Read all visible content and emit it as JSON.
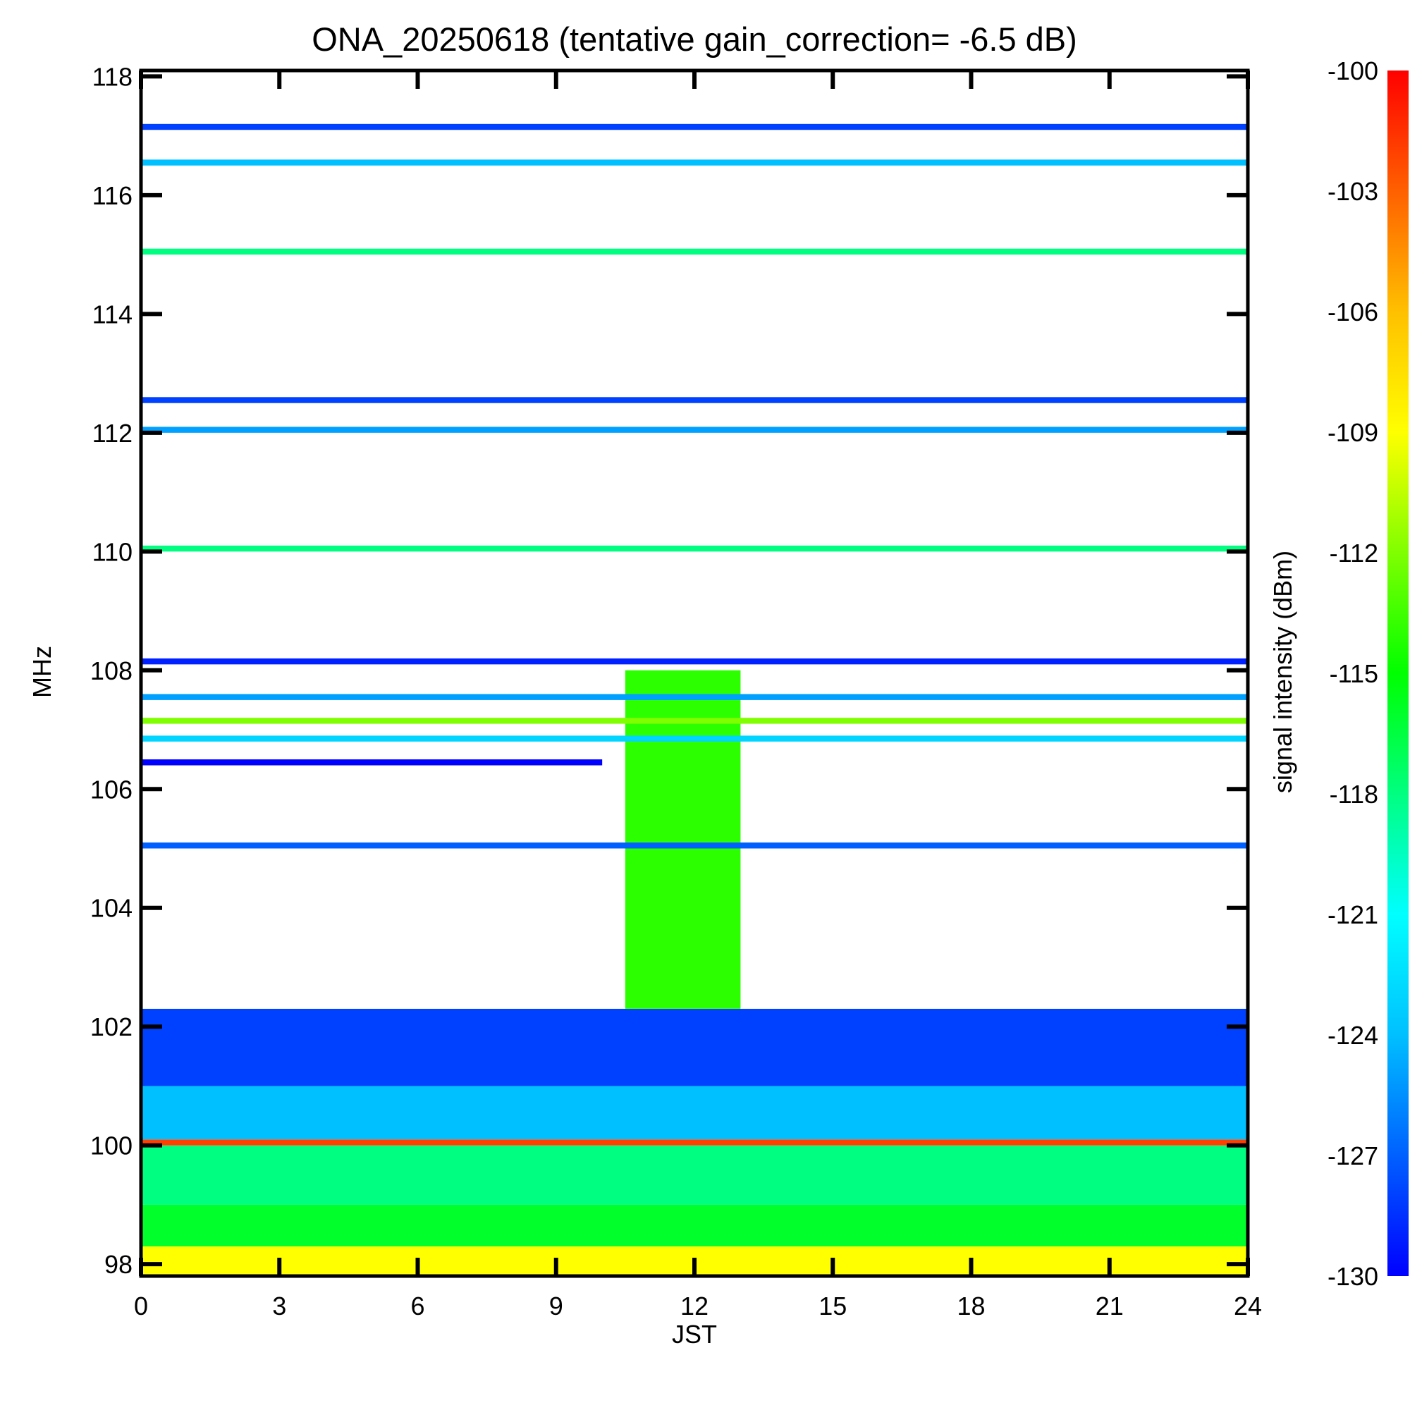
{
  "chart_data": {
    "type": "heatmap",
    "title": "ONA_20250618 (tentative gain_correction= -6.5 dB)",
    "xlabel": "JST",
    "ylabel": "MHz",
    "colorbar_label": "signal intensity (dBm)",
    "xlim": [
      0,
      24
    ],
    "ylim": [
      97.8,
      118.1
    ],
    "x_ticks": [
      0,
      3,
      6,
      9,
      12,
      15,
      18,
      21,
      24
    ],
    "x_tick_labels": [
      "0",
      "3",
      "6",
      "9",
      "12",
      "15",
      "18",
      "21",
      "24"
    ],
    "y_ticks": [
      98,
      100,
      102,
      104,
      106,
      108,
      110,
      112,
      114,
      116,
      118
    ],
    "y_tick_labels": [
      "98",
      "100",
      "102",
      "104",
      "106",
      "108",
      "110",
      "112",
      "114",
      "116",
      "118"
    ],
    "colorbar_range": [
      -130,
      -100
    ],
    "colorbar_ticks": [
      -100,
      -103,
      -106,
      -109,
      -112,
      -115,
      -118,
      -121,
      -124,
      -127,
      -130
    ],
    "colorbar_tick_labels": [
      "-100",
      "-103",
      "-106",
      "-109",
      "-112",
      "-115",
      "-118",
      "-121",
      "-124",
      "-127",
      "-130"
    ],
    "colormap": [
      "#0000ff",
      "#0060ff",
      "#00c0ff",
      "#00ffff",
      "#00ff80",
      "#00ff00",
      "#80ff00",
      "#ffff00",
      "#ffc000",
      "#ff6000",
      "#ff0000"
    ],
    "approx_bands": [
      {
        "freq_range": [
          97.8,
          98.3
        ],
        "time_range": [
          0,
          24
        ],
        "dbm": -109
      },
      {
        "freq_range": [
          98.3,
          99.0
        ],
        "time_range": [
          0,
          24
        ],
        "dbm": -116
      },
      {
        "freq_range": [
          99.0,
          100.0
        ],
        "time_range": [
          0,
          24
        ],
        "dbm": -118
      },
      {
        "freq_range": [
          100.0,
          100.1
        ],
        "time_range": [
          0,
          24
        ],
        "dbm": -102
      },
      {
        "freq_range": [
          100.1,
          101.0
        ],
        "time_range": [
          0,
          24
        ],
        "dbm": -124
      },
      {
        "freq_range": [
          101.0,
          102.3
        ],
        "time_range": [
          0,
          24
        ],
        "dbm": -128
      },
      {
        "freq_range": [
          102.3,
          108.0
        ],
        "time_range": [
          10.5,
          13.0
        ],
        "dbm": -114
      },
      {
        "freq_range": [
          105.0,
          105.1
        ],
        "time_range": [
          0,
          24
        ],
        "dbm": -127
      },
      {
        "freq_range": [
          106.4,
          106.5
        ],
        "time_range": [
          0,
          10
        ],
        "dbm": -130
      },
      {
        "freq_range": [
          106.8,
          106.9
        ],
        "time_range": [
          0,
          24
        ],
        "dbm": -123
      },
      {
        "freq_range": [
          107.1,
          107.2
        ],
        "time_range": [
          0,
          24
        ],
        "dbm": -112
      },
      {
        "freq_range": [
          107.5,
          107.6
        ],
        "time_range": [
          0,
          24
        ],
        "dbm": -125
      },
      {
        "freq_range": [
          108.1,
          108.2
        ],
        "time_range": [
          0,
          24
        ],
        "dbm": -129
      },
      {
        "freq_range": [
          110.0,
          110.1
        ],
        "time_range": [
          0,
          24
        ],
        "dbm": -118
      },
      {
        "freq_range": [
          112.0,
          112.1
        ],
        "time_range": [
          0,
          24
        ],
        "dbm": -125
      },
      {
        "freq_range": [
          112.5,
          112.6
        ],
        "time_range": [
          0,
          24
        ],
        "dbm": -128
      },
      {
        "freq_range": [
          115.0,
          115.1
        ],
        "time_range": [
          0,
          24
        ],
        "dbm": -118
      },
      {
        "freq_range": [
          116.5,
          116.6
        ],
        "time_range": [
          0,
          24
        ],
        "dbm": -124
      },
      {
        "freq_range": [
          117.1,
          117.2
        ],
        "time_range": [
          0,
          24
        ],
        "dbm": -128
      }
    ]
  }
}
